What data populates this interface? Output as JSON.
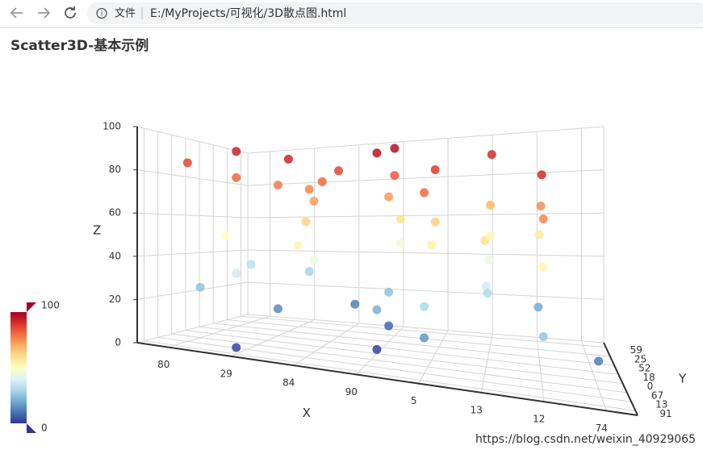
{
  "browser": {
    "security_label": "文件",
    "url": "E:/MyProjects/可视化/3D散点图.html"
  },
  "watermark": "https://blog.csdn.net/weixin_40929065",
  "chart_data": {
    "type": "scatter3D",
    "title": "Scatter3D-基本示例",
    "x_label": "X",
    "y_label": "Y",
    "z_label": "Z",
    "x_categories": [
      "80",
      "29",
      "84",
      "90",
      "5",
      "13",
      "12",
      "74"
    ],
    "y_categories": [
      "59",
      "25",
      "52",
      "18",
      "0",
      "67",
      "13",
      "91"
    ],
    "zlim": [
      0,
      100
    ],
    "zticks": [
      0,
      20,
      40,
      60,
      80,
      100
    ],
    "grid": true,
    "series": [
      {
        "x": [
          "29",
          "29",
          "90",
          "90",
          "80",
          "5",
          "13",
          "12",
          "84",
          "29",
          "84",
          "90",
          "5",
          "29",
          "29",
          "84",
          "90",
          "12",
          "12",
          "13",
          "84",
          "5",
          "90",
          "13",
          "12",
          "84",
          "5",
          "13",
          "12",
          "80",
          "90",
          "84",
          "13",
          "29",
          "13",
          "80",
          "5",
          "13",
          "29",
          "80",
          "90",
          "12",
          "90",
          "12",
          "5",
          "29",
          "84",
          "74",
          "90",
          "29",
          "90"
        ],
        "y": [
          "52",
          "91",
          "0",
          "25",
          "13",
          "18",
          "59",
          "67",
          "52",
          "91",
          "0",
          "25",
          "13",
          "18",
          "59",
          "67",
          "52",
          "91",
          "0",
          "25",
          "13",
          "18",
          "59",
          "67",
          "52",
          "91",
          "0",
          "25",
          "13",
          "18",
          "59",
          "67",
          "52",
          "91",
          "0",
          "25",
          "13",
          "18",
          "59",
          "67",
          "52",
          "91",
          "0",
          "25",
          "13",
          "18",
          "59",
          "67",
          "52",
          "91",
          "0"
        ],
        "z": [
          92,
          93,
          96,
          97,
          86,
          88,
          91,
          91,
          86,
          81,
          81,
          83,
          81,
          78,
          76,
          72,
          73,
          76,
          75,
          68,
          63,
          63,
          59,
          60,
          57,
          53,
          54,
          53,
          53,
          50,
          46,
          44,
          44,
          37,
          37,
          33,
          30,
          31,
          29,
          25,
          25,
          26,
          21,
          20,
          16,
          14,
          12,
          12,
          8,
          3,
          2
        ]
      }
    ],
    "visual_map": {
      "min": 0,
      "max": 100,
      "colors": [
        "#313695",
        "#4575b4",
        "#74add1",
        "#abd9e9",
        "#e0f3f8",
        "#ffffbf",
        "#fee090",
        "#fdae61",
        "#f46d43",
        "#d73027",
        "#a50026"
      ]
    }
  }
}
